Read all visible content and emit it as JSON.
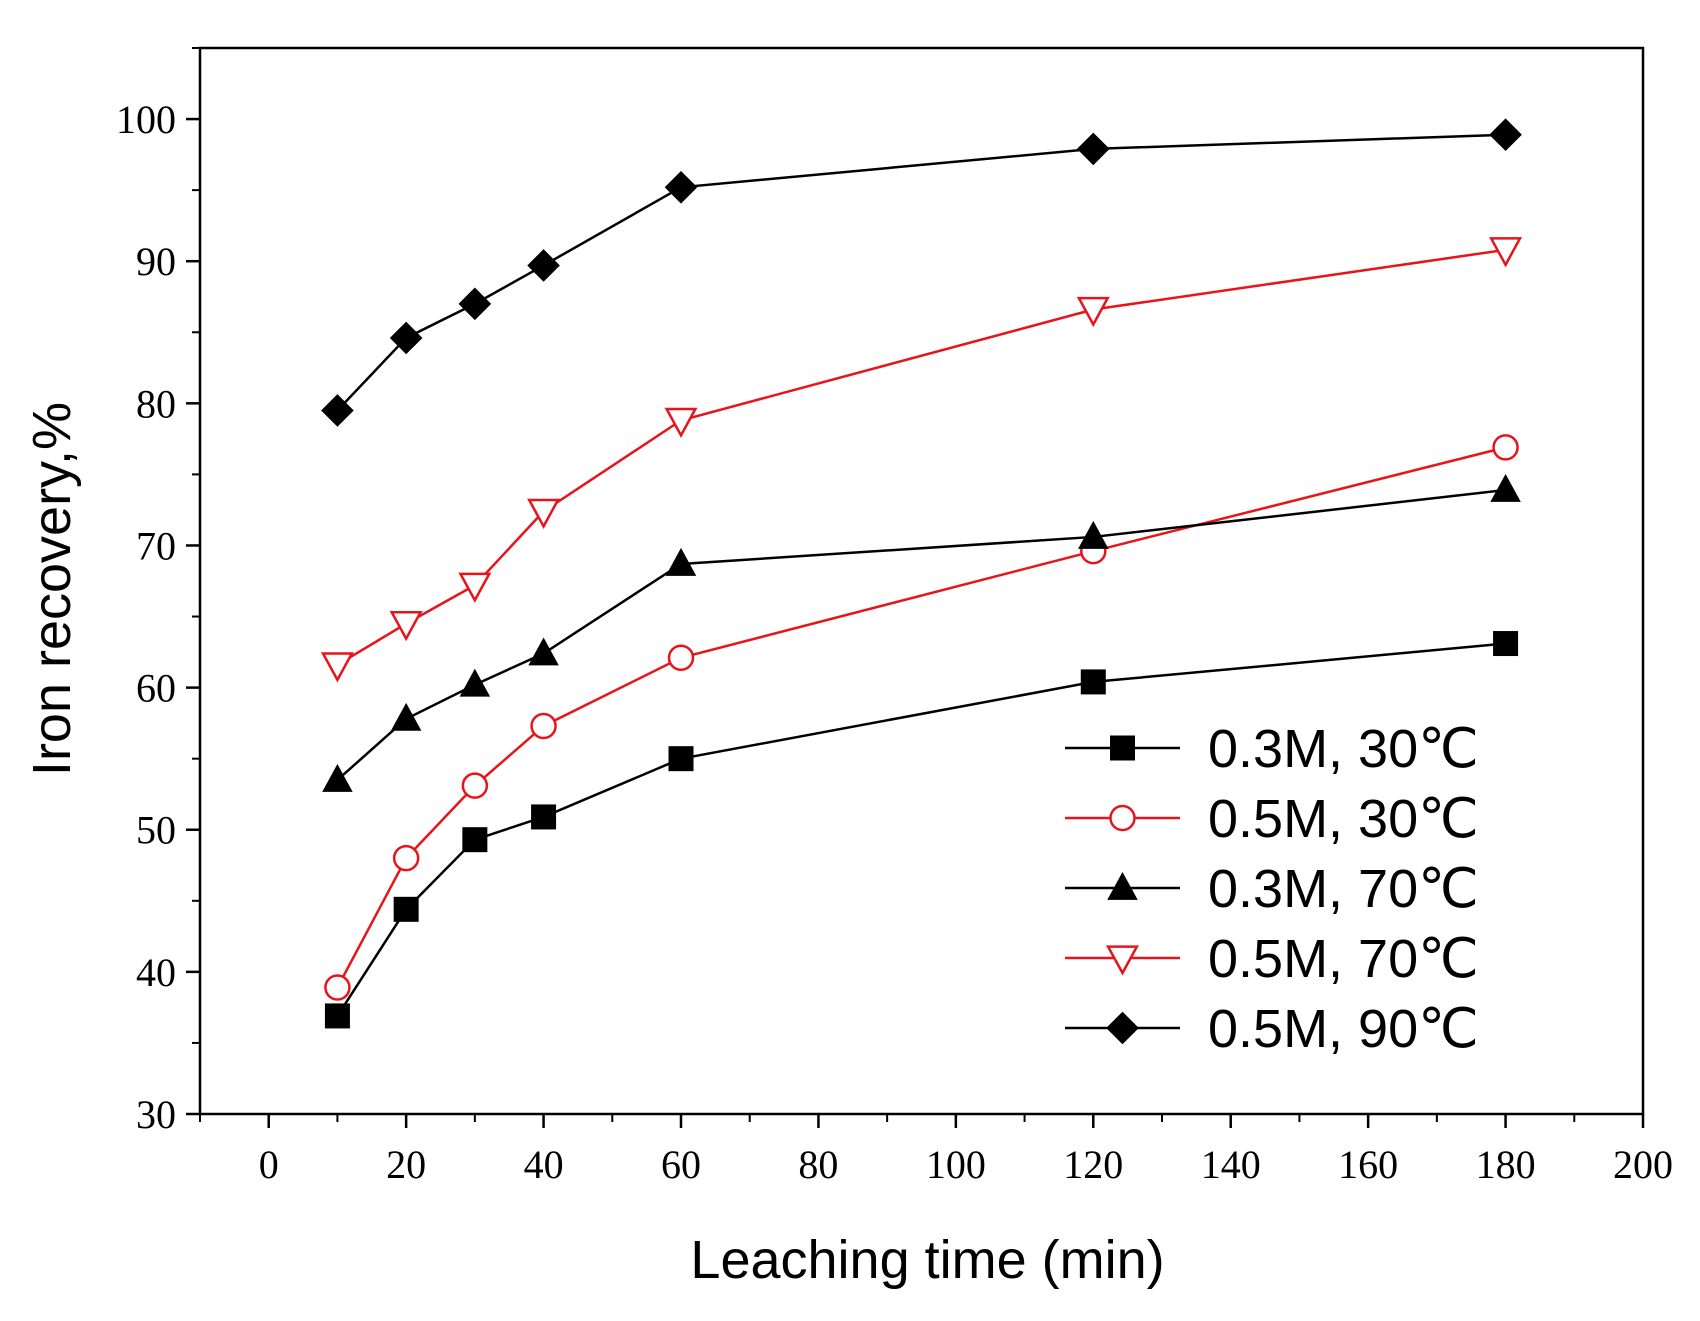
{
  "chart_data": {
    "type": "line",
    "xlabel": "Leaching time (min)",
    "ylabel": "Iron recovery,%",
    "xlim": [
      -10,
      200
    ],
    "ylim": [
      30,
      105
    ],
    "x_ticks": [
      0,
      20,
      40,
      60,
      80,
      100,
      120,
      140,
      160,
      180,
      200
    ],
    "y_ticks": [
      30,
      40,
      50,
      60,
      70,
      80,
      90,
      100
    ],
    "grid": false,
    "legend_position": "bottom-right",
    "x": [
      10,
      20,
      30,
      40,
      60,
      120,
      180
    ],
    "series": [
      {
        "name": "0.3M, 30℃",
        "marker": "square-filled",
        "color": "#000000",
        "values": [
          36.9,
          44.4,
          49.3,
          50.9,
          55.0,
          60.4,
          63.1
        ]
      },
      {
        "name": "0.5M, 30℃",
        "marker": "circle-open",
        "color": "#e8141b",
        "values": [
          38.9,
          48.0,
          53.1,
          57.3,
          62.1,
          69.6,
          76.9
        ]
      },
      {
        "name": "0.3M, 70℃",
        "marker": "triangle-up-filled",
        "color": "#000000",
        "values": [
          53.5,
          57.8,
          60.2,
          62.4,
          68.7,
          70.6,
          73.9
        ]
      },
      {
        "name": "0.5M, 70℃",
        "marker": "triangle-down-open",
        "color": "#e8141b",
        "values": [
          61.6,
          64.5,
          67.2,
          72.4,
          78.8,
          86.6,
          90.8
        ]
      },
      {
        "name": "0.5M, 90℃",
        "marker": "diamond-filled",
        "color": "#000000",
        "values": [
          79.5,
          84.6,
          87.0,
          89.7,
          95.2,
          97.9,
          98.9
        ]
      }
    ]
  }
}
